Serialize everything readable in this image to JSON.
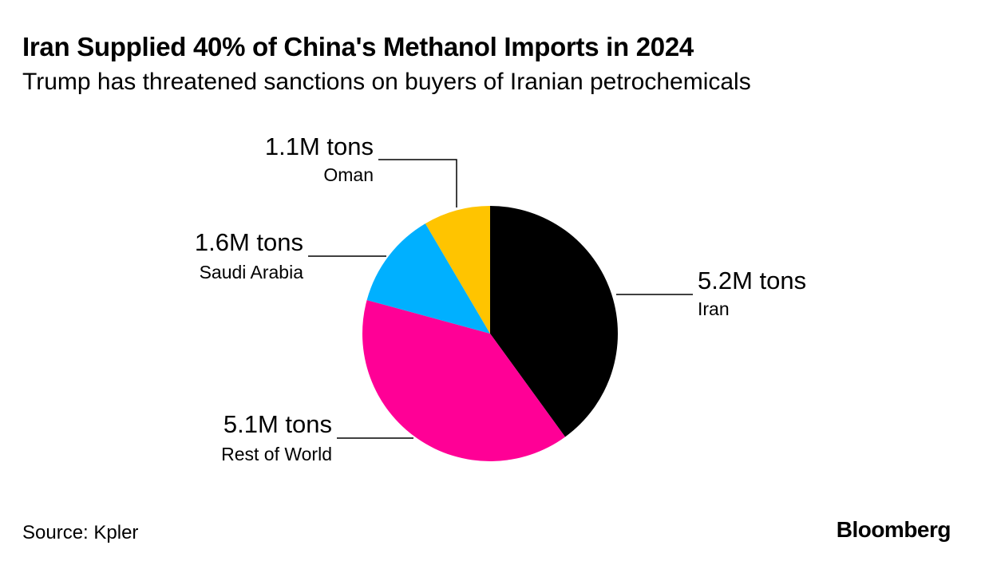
{
  "header": {
    "title": "Iran Supplied 40% of China's Methanol Imports in 2024",
    "subtitle": "Trump has threatened sanctions on buyers of Iranian petrochemicals"
  },
  "footer": {
    "source": "Source: Kpler",
    "logo": "Bloomberg"
  },
  "chart_data": {
    "type": "pie",
    "title": "Iran Supplied 40% of China's Methanol Imports in 2024",
    "subtitle": "Trump has threatened sanctions on buyers of Iranian petrochemicals",
    "unit": "million tons",
    "slices": [
      {
        "key": "iran",
        "label": "Iran",
        "value": 5.2,
        "value_label": "5.2M tons",
        "color": "#000000"
      },
      {
        "key": "rest-of-world",
        "label": "Rest of World",
        "value": 5.1,
        "value_label": "5.1M tons",
        "color": "#ff0096"
      },
      {
        "key": "saudi-arabia",
        "label": "Saudi Arabia",
        "value": 1.6,
        "value_label": "1.6M tons",
        "color": "#00b0ff"
      },
      {
        "key": "oman",
        "label": "Oman",
        "value": 1.1,
        "value_label": "1.1M tons",
        "color": "#ffc400"
      }
    ]
  }
}
